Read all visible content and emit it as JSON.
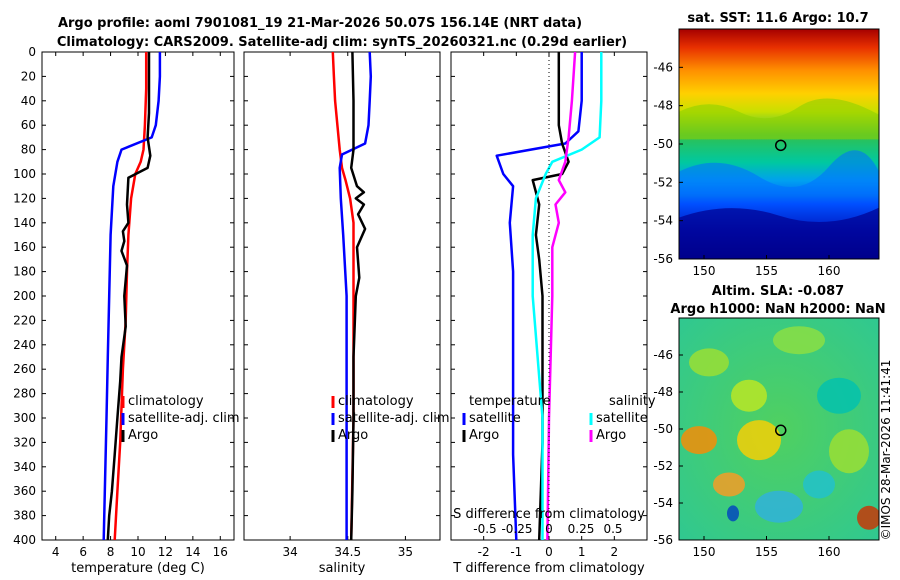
{
  "title_line1": "Argo profile: aoml 7901081_19 21-Mar-2026 50.07S 156.14E (NRT data)",
  "title_line2": "Climatology: CARS2009. Satellite-adj clim: synTS_20260321.nc (0.29d earlier)",
  "watermark": "©IMOS 28-Mar-2026 11:41:41",
  "colors": {
    "climatology": "#ff0000",
    "satellite": "#0000ff",
    "argo": "#000000",
    "sal_satellite": "#00ffff",
    "sal_argo": "#ff00ff"
  },
  "chart_data": [
    {
      "type": "line",
      "name": "temperature",
      "xlabel": "temperature (deg C)",
      "ylabel": "",
      "xlim": [
        3,
        17
      ],
      "ylim": [
        400,
        0
      ],
      "xticks": [
        4,
        6,
        8,
        10,
        12,
        14,
        16
      ],
      "yticks": [
        0,
        20,
        40,
        60,
        80,
        100,
        120,
        140,
        160,
        180,
        200,
        220,
        240,
        260,
        280,
        300,
        320,
        340,
        360,
        380,
        400
      ],
      "legend": [
        "climatology",
        "satellite-adj. clim",
        "Argo"
      ],
      "series": [
        {
          "name": "climatology",
          "color": "#ff0000",
          "points": [
            [
              10.6,
              0
            ],
            [
              10.6,
              30
            ],
            [
              10.5,
              60
            ],
            [
              10.4,
              80
            ],
            [
              10.2,
              90
            ],
            [
              9.8,
              100
            ],
            [
              9.5,
              120
            ],
            [
              9.3,
              150
            ],
            [
              9.2,
              180
            ],
            [
              9.1,
              220
            ],
            [
              8.9,
              260
            ],
            [
              8.7,
              320
            ],
            [
              8.5,
              360
            ],
            [
              8.3,
              400
            ]
          ]
        },
        {
          "name": "satellite-adj. clim",
          "color": "#0000ff",
          "points": [
            [
              11.6,
              0
            ],
            [
              11.6,
              20
            ],
            [
              11.5,
              40
            ],
            [
              11.3,
              60
            ],
            [
              11.0,
              70
            ],
            [
              8.8,
              80
            ],
            [
              8.5,
              90
            ],
            [
              8.2,
              110
            ],
            [
              8.0,
              150
            ],
            [
              7.9,
              200
            ],
            [
              7.8,
              250
            ],
            [
              7.7,
              300
            ],
            [
              7.6,
              350
            ],
            [
              7.5,
              400
            ]
          ]
        },
        {
          "name": "Argo",
          "color": "#000000",
          "points": [
            [
              10.8,
              0
            ],
            [
              10.8,
              50
            ],
            [
              10.7,
              70
            ],
            [
              10.9,
              85
            ],
            [
              10.7,
              95
            ],
            [
              9.3,
              103
            ],
            [
              9.2,
              125
            ],
            [
              9.3,
              140
            ],
            [
              8.9,
              147
            ],
            [
              9.0,
              155
            ],
            [
              8.8,
              163
            ],
            [
              9.2,
              175
            ],
            [
              9.0,
              200
            ],
            [
              9.1,
              225
            ],
            [
              8.8,
              250
            ],
            [
              8.7,
              270
            ],
            [
              8.5,
              300
            ],
            [
              8.3,
              330
            ],
            [
              8.1,
              360
            ],
            [
              7.9,
              380
            ],
            [
              7.8,
              400
            ]
          ]
        }
      ]
    },
    {
      "type": "line",
      "name": "salinity",
      "xlabel": "salinity",
      "ylabel": "",
      "xlim": [
        33.6,
        35.3
      ],
      "xticks": [
        34,
        34.5,
        35
      ],
      "ylim": [
        400,
        0
      ],
      "legend": [
        "climatology",
        "satellite-adj. clim",
        "Argo"
      ],
      "series": [
        {
          "name": "climatology",
          "color": "#ff0000",
          "points": [
            [
              34.37,
              0
            ],
            [
              34.38,
              20
            ],
            [
              34.39,
              40
            ],
            [
              34.41,
              60
            ],
            [
              34.43,
              80
            ],
            [
              34.45,
              95
            ],
            [
              34.48,
              105
            ],
            [
              34.52,
              120
            ],
            [
              34.55,
              140
            ],
            [
              34.55,
              200
            ],
            [
              34.55,
              300
            ],
            [
              34.53,
              400
            ]
          ]
        },
        {
          "name": "satellite-adj. clim",
          "color": "#0000ff",
          "points": [
            [
              34.69,
              0
            ],
            [
              34.7,
              20
            ],
            [
              34.69,
              40
            ],
            [
              34.68,
              60
            ],
            [
              34.65,
              75
            ],
            [
              34.45,
              84
            ],
            [
              34.43,
              95
            ],
            [
              34.44,
              120
            ],
            [
              34.46,
              150
            ],
            [
              34.49,
              200
            ],
            [
              34.49,
              300
            ],
            [
              34.49,
              400
            ]
          ]
        },
        {
          "name": "Argo",
          "color": "#000000",
          "points": [
            [
              34.54,
              0
            ],
            [
              34.55,
              40
            ],
            [
              34.55,
              80
            ],
            [
              34.53,
              95
            ],
            [
              34.58,
              110
            ],
            [
              34.64,
              115
            ],
            [
              34.57,
              120
            ],
            [
              34.64,
              125
            ],
            [
              34.59,
              133
            ],
            [
              34.65,
              145
            ],
            [
              34.58,
              160
            ],
            [
              34.6,
              185
            ],
            [
              34.57,
              200
            ],
            [
              34.55,
              250
            ],
            [
              34.55,
              300
            ],
            [
              34.54,
              360
            ],
            [
              34.53,
              400
            ]
          ]
        }
      ]
    },
    {
      "type": "line",
      "name": "difference",
      "xlabel": "T difference from climatology",
      "toplabel": "S difference from climatology",
      "xlim": [
        -3,
        3
      ],
      "xticks": [
        -2,
        -1,
        0,
        1,
        2
      ],
      "sticks": [
        "-0.5",
        "-0.25",
        "0",
        "0.25",
        "0.5"
      ],
      "ylim": [
        400,
        0
      ],
      "legend_headers": [
        "temperature",
        "salinity"
      ],
      "legend": [
        "satellite",
        "Argo",
        "satellite",
        "Argo"
      ],
      "series": [
        {
          "name": "T satellite",
          "color": "#0000ff",
          "points": [
            [
              1.0,
              0
            ],
            [
              1.0,
              40
            ],
            [
              0.9,
              65
            ],
            [
              0.5,
              75
            ],
            [
              -1.6,
              85
            ],
            [
              -1.4,
              100
            ],
            [
              -1.1,
              110
            ],
            [
              -1.2,
              140
            ],
            [
              -1.1,
              180
            ],
            [
              -1.1,
              250
            ],
            [
              -1.1,
              330
            ],
            [
              -1.0,
              400
            ]
          ]
        },
        {
          "name": "T Argo",
          "color": "#000000",
          "points": [
            [
              0.3,
              0
            ],
            [
              0.3,
              60
            ],
            [
              0.4,
              75
            ],
            [
              0.6,
              90
            ],
            [
              0.4,
              100
            ],
            [
              -0.5,
              105
            ],
            [
              -0.3,
              125
            ],
            [
              -0.4,
              150
            ],
            [
              -0.3,
              170
            ],
            [
              -0.2,
              200
            ],
            [
              -0.2,
              250
            ],
            [
              -0.2,
              320
            ],
            [
              -0.3,
              400
            ]
          ]
        },
        {
          "name": "S satellite",
          "color": "#00ffff",
          "points": [
            [
              1.6,
              0
            ],
            [
              1.6,
              40
            ],
            [
              1.55,
              70
            ],
            [
              1.0,
              80
            ],
            [
              0.1,
              90
            ],
            [
              -0.1,
              100
            ],
            [
              -0.4,
              120
            ],
            [
              -0.5,
              150
            ],
            [
              -0.5,
              200
            ],
            [
              -0.2,
              300
            ],
            [
              -0.2,
              400
            ]
          ]
        },
        {
          "name": "S Argo",
          "color": "#ff00ff",
          "points": [
            [
              0.8,
              0
            ],
            [
              0.7,
              40
            ],
            [
              0.6,
              70
            ],
            [
              0.5,
              90
            ],
            [
              0.3,
              105
            ],
            [
              0.5,
              115
            ],
            [
              0.2,
              125
            ],
            [
              0.3,
              140
            ],
            [
              0.1,
              160
            ],
            [
              0.1,
              200
            ],
            [
              0.0,
              300
            ],
            [
              -0.05,
              400
            ]
          ]
        }
      ]
    },
    {
      "type": "heatmap",
      "name": "sst-map",
      "title": "sat. SST: 11.6 Argo: 10.7",
      "xlim": [
        148,
        164
      ],
      "ylim": [
        -56,
        -44
      ],
      "xticks": [
        150,
        155,
        160
      ],
      "yticks": [
        -46,
        -48,
        -50,
        -52,
        -54,
        -56
      ],
      "marker": {
        "lon": 156.14,
        "lat": -50.07
      }
    },
    {
      "type": "heatmap",
      "name": "sla-map",
      "title_line1": "Altim. SLA: -0.087",
      "title_line2": "Argo h1000: NaN h2000: NaN",
      "xlim": [
        148,
        164
      ],
      "ylim": [
        -56,
        -44
      ],
      "xticks": [
        150,
        155,
        160
      ],
      "yticks": [
        -46,
        -48,
        -50,
        -52,
        -54,
        -56
      ],
      "marker": {
        "lon": 156.14,
        "lat": -50.07
      }
    }
  ]
}
